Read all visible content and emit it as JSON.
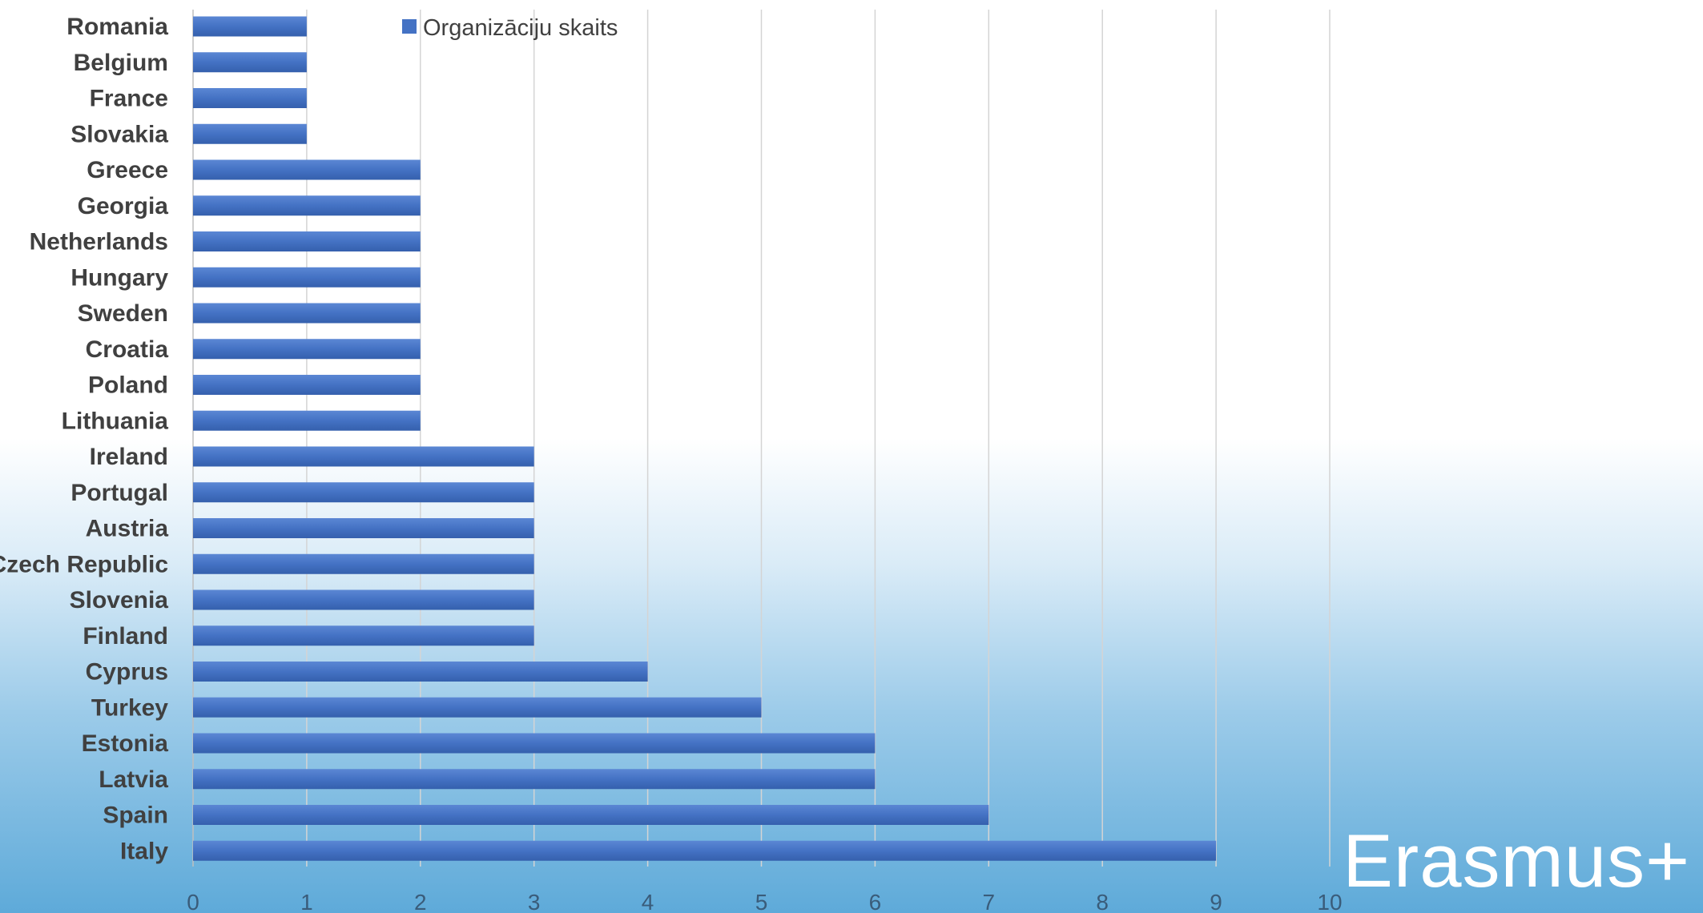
{
  "chart_data": {
    "type": "bar",
    "orientation": "horizontal",
    "categories": [
      "Romania",
      "Belgium",
      "France",
      "Slovakia",
      "Greece",
      "Georgia",
      "Netherlands",
      "Hungary",
      "Sweden",
      "Croatia",
      "Poland",
      "Lithuania",
      "Ireland",
      "Portugal",
      "Austria",
      "Czech Republic",
      "Slovenia",
      "Finland",
      "Cyprus",
      "Turkey",
      "Estonia",
      "Latvia",
      "Spain",
      "Italy"
    ],
    "series": [
      {
        "name": "Organizāciju skaits",
        "values": [
          1,
          1,
          1,
          1,
          2,
          2,
          2,
          2,
          2,
          2,
          2,
          2,
          3,
          3,
          3,
          3,
          3,
          3,
          4,
          5,
          6,
          6,
          7,
          9
        ]
      }
    ],
    "x_ticks": [
      "0",
      "1",
      "2",
      "3",
      "4",
      "5",
      "6",
      "7",
      "8",
      "9",
      "10"
    ],
    "xlim": [
      0,
      10
    ],
    "grid": "vertical",
    "legend_position": "top",
    "colors": {
      "bar": "#4472c4",
      "grid": "#d4d4d4",
      "tick": "#3a5c7a",
      "label": "#404040"
    }
  },
  "branding": {
    "logo_text": "Erasmus+"
  }
}
